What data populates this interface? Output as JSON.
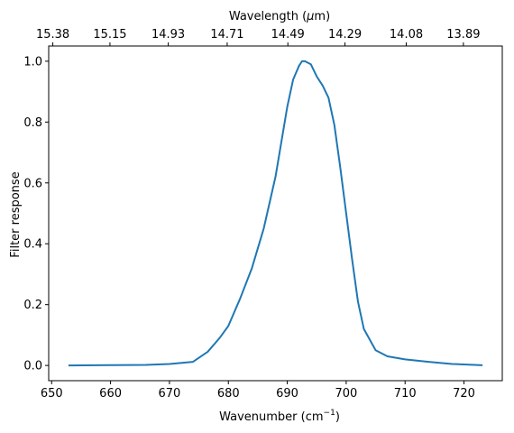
{
  "chart_data": {
    "type": "line",
    "title": "",
    "xlabel": "Wavenumber (cm",
    "xlabel_sup": "−1",
    "xlabel_suffix": ")",
    "ylabel": "Filter response",
    "x2label": "Wavelength (",
    "x2label_mu": "μ",
    "x2label_suffix": "m)",
    "xlim": [
      649.5,
      726.5
    ],
    "ylim": [
      -0.05,
      1.05
    ],
    "grid": false,
    "xticks": [
      650,
      660,
      670,
      680,
      690,
      700,
      710,
      720
    ],
    "xtick_labels": [
      "650",
      "660",
      "670",
      "680",
      "690",
      "700",
      "710",
      "720"
    ],
    "yticks": [
      0.0,
      0.2,
      0.4,
      0.6,
      0.8,
      1.0
    ],
    "ytick_labels": [
      "0.0",
      "0.2",
      "0.4",
      "0.6",
      "0.8",
      "1.0"
    ],
    "x2ticks": [
      650.2,
      659.9,
      669.8,
      679.8,
      690.1,
      699.8,
      710.2,
      719.9
    ],
    "x2tick_labels": [
      "15.38",
      "15.15",
      "14.93",
      "14.71",
      "14.49",
      "14.29",
      "14.08",
      "13.89"
    ],
    "series": [
      {
        "color": "#1f77b4",
        "x": [
          653,
          660,
          666,
          670,
          674,
          676.5,
          678.5,
          680,
          682,
          684,
          686,
          688,
          690,
          691,
          692,
          692.5,
          693,
          694,
          695,
          696,
          697,
          698,
          699,
          700,
          701,
          702,
          703,
          705,
          707,
          710,
          714,
          718,
          723
        ],
        "y": [
          0.0,
          0.001,
          0.002,
          0.005,
          0.012,
          0.045,
          0.09,
          0.13,
          0.22,
          0.32,
          0.45,
          0.62,
          0.85,
          0.94,
          0.985,
          1.0,
          1.0,
          0.99,
          0.95,
          0.92,
          0.88,
          0.79,
          0.65,
          0.5,
          0.35,
          0.21,
          0.12,
          0.05,
          0.03,
          0.02,
          0.012,
          0.005,
          0.001
        ]
      }
    ]
  }
}
